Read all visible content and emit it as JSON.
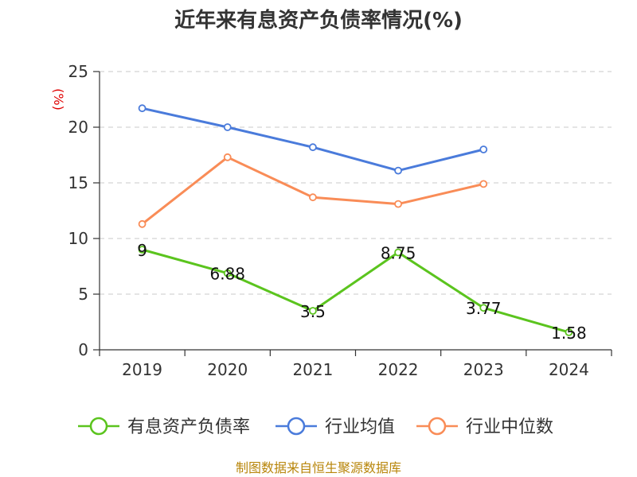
{
  "chart_data": {
    "type": "line",
    "title": "近年来有息资产负债率情况(%)",
    "ylabel": "(%)",
    "categories": [
      "2019",
      "2020",
      "2021",
      "2022",
      "2023",
      "2024"
    ],
    "yticks": [
      "0",
      "5",
      "10",
      "15",
      "20",
      "25"
    ],
    "ylim": [
      0,
      25
    ],
    "grid": true,
    "legend_position": "bottom",
    "series": [
      {
        "name": "有息资产负债率",
        "color": "#5bc41e",
        "values": [
          9,
          6.88,
          3.5,
          8.75,
          3.77,
          1.58
        ],
        "labels": [
          "9",
          "6.88",
          "3.5",
          "8.75",
          "3.77",
          "1.58"
        ]
      },
      {
        "name": "行业均值",
        "color": "#4a7bdb",
        "values": [
          21.7,
          20.0,
          18.2,
          16.1,
          18.0,
          null
        ]
      },
      {
        "name": "行业中位数",
        "color": "#f98c57",
        "values": [
          11.3,
          17.3,
          13.7,
          13.1,
          14.9,
          null
        ]
      }
    ]
  },
  "source": "制图数据来自恒生聚源数据库"
}
